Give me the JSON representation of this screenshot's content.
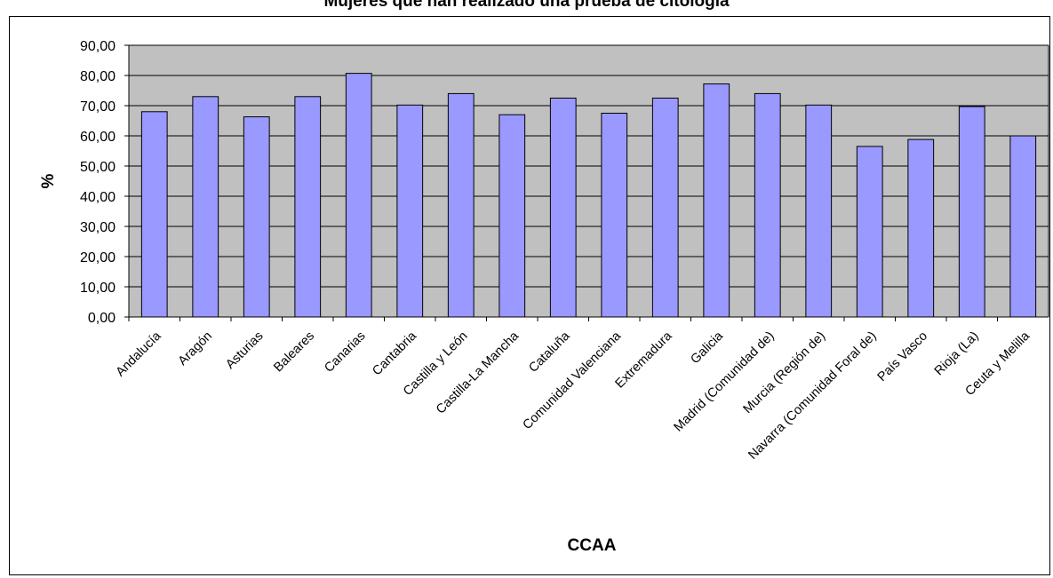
{
  "chart_data": {
    "type": "bar",
    "title": "Mujeres que han realizado una prueba de citología",
    "xlabel": "CCAA",
    "ylabel": "%",
    "ylim": [
      0,
      90
    ],
    "yticks": [
      "0,00",
      "10,00",
      "20,00",
      "30,00",
      "40,00",
      "50,00",
      "60,00",
      "70,00",
      "80,00",
      "90,00"
    ],
    "categories": [
      "Andalucía",
      "Aragón",
      "Asturias",
      "Baleares",
      "Canarias",
      "Cantabria",
      "Castilla y León",
      "Castilla-La Mancha",
      "Cataluña",
      "Comunidad Valenciana",
      "Extremadura",
      "Galicia",
      "Madrid (Comunidad de)",
      "Murcia (Región de)",
      "Navarra (Comunidad Foral de)",
      "País Vasco",
      "Rioja (La)",
      "Ceuta y Melilla"
    ],
    "values": [
      68.0,
      73.0,
      66.3,
      73.0,
      80.7,
      70.2,
      74.0,
      67.0,
      72.5,
      67.5,
      72.5,
      77.2,
      74.0,
      70.2,
      56.5,
      58.8,
      69.7,
      60.0
    ],
    "grid": true,
    "legend": "none",
    "colors": {
      "bar_fill": "#9999ff",
      "plot_bg": "#c0c0c0",
      "bar_stroke": "#000000"
    }
  }
}
